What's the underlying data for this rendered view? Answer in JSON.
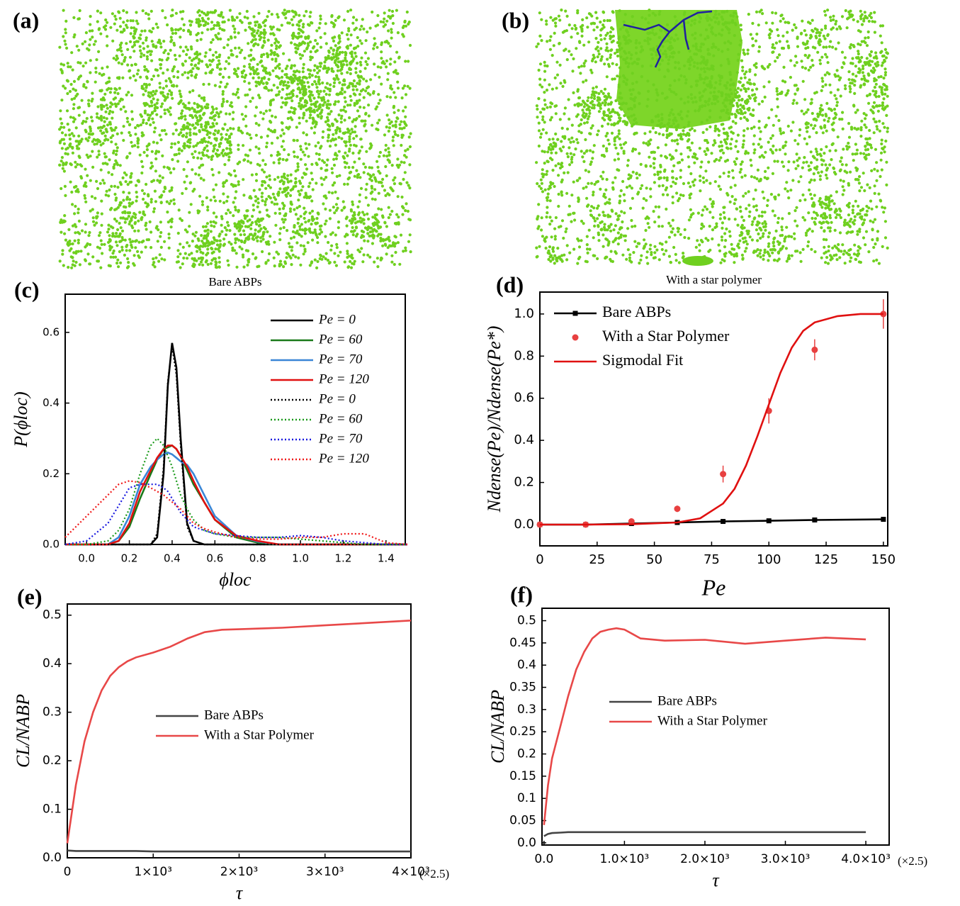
{
  "snapshots": [
    {
      "label": "(a)"
    },
    {
      "label": "(b)"
    }
  ],
  "chart_data": [
    {
      "type": "line",
      "label": "(c)",
      "title": "Bare ABPs",
      "xlabel": "ϕloc",
      "ylabel": "P(ϕloc)",
      "xlim": [
        -0.1,
        1.49
      ],
      "ylim": [
        0,
        0.708
      ],
      "xticks": [
        {
          "value": 0,
          "label": "0.0"
        },
        0.2,
        0.4,
        0.6,
        0.8,
        {
          "value": 1,
          "label": "1.0"
        },
        1.2,
        1.4
      ],
      "yticks": [
        {
          "value": 0,
          "label": "0.0"
        },
        0.2,
        0.4,
        0.6
      ],
      "x": [
        -0.1,
        0,
        0.1,
        0.15,
        0.2,
        0.25,
        0.3,
        0.33,
        0.36,
        0.38,
        0.4,
        0.42,
        0.44,
        0.47,
        0.5,
        0.55,
        0.6,
        0.7,
        0.8,
        0.9,
        1.0,
        1.1,
        1.2,
        1.3,
        1.4,
        1.5
      ],
      "legend": "upper right",
      "series": [
        {
          "name": "Pe = 0",
          "color": "#000000",
          "linestyle": "solid",
          "values": [
            0,
            0,
            0,
            0,
            0,
            0,
            0,
            0.02,
            0.2,
            0.45,
            0.57,
            0.5,
            0.3,
            0.06,
            0.01,
            0,
            0,
            0,
            0,
            0,
            0,
            0,
            0,
            0,
            0,
            0
          ]
        },
        {
          "name": "Pe = 60",
          "color": "#1a7a1a",
          "linestyle": "solid",
          "values": [
            0,
            0,
            0,
            0.01,
            0.05,
            0.13,
            0.2,
            0.24,
            0.27,
            0.275,
            0.28,
            0.27,
            0.25,
            0.21,
            0.17,
            0.12,
            0.07,
            0.02,
            0.005,
            0,
            0,
            0,
            0,
            0,
            0,
            0
          ]
        },
        {
          "name": "Pe = 70",
          "color": "#3a86d6",
          "linestyle": "solid",
          "values": [
            0,
            0,
            0,
            0.02,
            0.08,
            0.17,
            0.22,
            0.24,
            0.255,
            0.26,
            0.255,
            0.245,
            0.235,
            0.225,
            0.2,
            0.14,
            0.08,
            0.025,
            0.008,
            0,
            0,
            0,
            0,
            0,
            0,
            0
          ]
        },
        {
          "name": "Pe = 120",
          "color": "#e01010",
          "linestyle": "solid",
          "values": [
            0,
            0,
            0,
            0.01,
            0.06,
            0.15,
            0.21,
            0.245,
            0.27,
            0.28,
            0.28,
            0.27,
            0.25,
            0.22,
            0.18,
            0.12,
            0.07,
            0.025,
            0.01,
            0,
            0,
            0,
            0,
            0,
            0,
            0
          ]
        },
        {
          "name": "Pe = 0",
          "color": "#000000",
          "linestyle": "dotted",
          "values": [
            0,
            0,
            0,
            0,
            0,
            0,
            0,
            0.03,
            0.22,
            0.46,
            0.56,
            0.48,
            0.28,
            0.05,
            0.01,
            0,
            0,
            0,
            0,
            0,
            0,
            0,
            0,
            0,
            0,
            0
          ]
        },
        {
          "name": "Pe = 60",
          "color": "#1a9a1a",
          "linestyle": "dotted",
          "values": [
            0,
            0,
            0.01,
            0.04,
            0.1,
            0.2,
            0.28,
            0.3,
            0.28,
            0.25,
            0.22,
            0.18,
            0.14,
            0.1,
            0.07,
            0.04,
            0.03,
            0.02,
            0.02,
            0.02,
            0.015,
            0.01,
            0.005,
            0,
            0,
            0
          ]
        },
        {
          "name": "Pe = 70",
          "color": "#1a1ae0",
          "linestyle": "dotted",
          "values": [
            0,
            0.01,
            0.06,
            0.11,
            0.16,
            0.17,
            0.17,
            0.17,
            0.16,
            0.15,
            0.13,
            0.11,
            0.09,
            0.07,
            0.05,
            0.04,
            0.03,
            0.025,
            0.02,
            0.02,
            0.025,
            0.02,
            0.01,
            0.005,
            0,
            0
          ]
        },
        {
          "name": "Pe = 120",
          "color": "#f01a1a",
          "linestyle": "dotted",
          "values": [
            0.02,
            0.08,
            0.14,
            0.17,
            0.18,
            0.175,
            0.16,
            0.15,
            0.14,
            0.13,
            0.12,
            0.11,
            0.1,
            0.08,
            0.06,
            0.045,
            0.035,
            0.02,
            0.015,
            0.015,
            0.02,
            0.02,
            0.03,
            0.03,
            0.005,
            0
          ]
        }
      ]
    },
    {
      "type": "line",
      "label": "(d)",
      "title": "With a star polymer",
      "xlabel": "Pe",
      "ylabel": "Ndense(Pe)/Ndense(Pe*)",
      "xlim": [
        0,
        151.9
      ],
      "ylim": [
        -0.101,
        1.104
      ],
      "xticks": [
        0,
        25,
        50,
        75,
        100,
        125,
        150
      ],
      "yticks": [
        {
          "value": 0,
          "label": "0.0"
        },
        0.2,
        0.4,
        0.6,
        0.8,
        {
          "value": 1,
          "label": "1.0"
        }
      ],
      "legend": "upper left",
      "series": [
        {
          "name": "Bare ABPs",
          "color": "#000000",
          "linestyle": "solid",
          "marker": "square",
          "x": [
            0,
            20,
            40,
            60,
            80,
            100,
            120,
            150
          ],
          "values": [
            0,
            0,
            0.005,
            0.01,
            0.015,
            0.018,
            0.022,
            0.025
          ]
        },
        {
          "name": "With a Star Polymer",
          "color": "#e84040",
          "linestyle": "none",
          "marker": "circle",
          "x": [
            0,
            20,
            40,
            60,
            80,
            100,
            120,
            150
          ],
          "values": [
            0,
            0,
            0.015,
            0.075,
            0.24,
            0.54,
            0.83,
            1.0
          ],
          "errors": [
            0,
            0,
            0.01,
            0.015,
            0.04,
            0.06,
            0.05,
            0.07
          ]
        },
        {
          "name": "Sigmodal Fit",
          "color": "#e01010",
          "linestyle": "solid",
          "x": [
            0,
            20,
            40,
            60,
            70,
            80,
            85,
            90,
            95,
            100,
            105,
            110,
            115,
            120,
            130,
            140,
            150
          ],
          "values": [
            0,
            0,
            0.002,
            0.01,
            0.03,
            0.1,
            0.17,
            0.28,
            0.42,
            0.57,
            0.72,
            0.84,
            0.92,
            0.96,
            0.99,
            1.0,
            1.0
          ]
        }
      ]
    },
    {
      "type": "line",
      "label": "(e)",
      "xlabel": "τ",
      "ylabel": "CL/NABP",
      "x_annotation": "(×2.5)",
      "xlim": [
        0,
        4000
      ],
      "ylim": [
        0,
        0.523
      ],
      "xticks": [
        0,
        {
          "value": 1000,
          "label": "1×10³"
        },
        {
          "value": 2000,
          "label": "2×10³"
        },
        {
          "value": 3000,
          "label": "3×10³"
        },
        {
          "value": 4000,
          "label": "4×10³"
        }
      ],
      "yticks": [
        {
          "value": 0,
          "label": "0.0"
        },
        0.1,
        0.2,
        0.3,
        0.4,
        0.5
      ],
      "legend": "center",
      "x": [
        0,
        100,
        200,
        300,
        400,
        500,
        600,
        700,
        800,
        1000,
        1200,
        1400,
        1600,
        1800,
        2000,
        2500,
        3000,
        3500,
        4000
      ],
      "series": [
        {
          "name": "Bare ABPs",
          "color": "#444444",
          "linestyle": "solid",
          "values": [
            0.015,
            0.014,
            0.014,
            0.014,
            0.014,
            0.014,
            0.014,
            0.014,
            0.014,
            0.013,
            0.013,
            0.013,
            0.013,
            0.013,
            0.013,
            0.013,
            0.013,
            0.013,
            0.013
          ]
        },
        {
          "name": "With a Star Polymer",
          "color": "#e84848",
          "linestyle": "solid",
          "values": [
            0.03,
            0.15,
            0.24,
            0.3,
            0.345,
            0.375,
            0.393,
            0.405,
            0.413,
            0.423,
            0.435,
            0.452,
            0.465,
            0.47,
            0.471,
            0.474,
            0.479,
            0.484,
            0.489
          ]
        }
      ]
    },
    {
      "type": "line",
      "label": "(f)",
      "xlabel": "τ",
      "ylabel": "CL/NABP",
      "x_annotation": "(×2.5)",
      "xlim": [
        -25,
        4290
      ],
      "ylim": [
        -0.005,
        0.528
      ],
      "xticks": [
        {
          "value": 0,
          "label": "0.0"
        },
        {
          "value": 1000,
          "label": "1.0×10³"
        },
        {
          "value": 2000,
          "label": "2.0×10³"
        },
        {
          "value": 3000,
          "label": "3.0×10³"
        },
        {
          "value": 4000,
          "label": "4.0×10³"
        }
      ],
      "yticks": [
        {
          "value": 0,
          "label": "0.0"
        },
        0.05,
        0.1,
        0.15,
        0.2,
        0.25,
        0.3,
        0.35,
        0.4,
        0.45,
        0.5
      ],
      "legend": "center left",
      "x": [
        0,
        50,
        100,
        200,
        300,
        400,
        500,
        600,
        700,
        800,
        900,
        1000,
        1100,
        1200,
        1500,
        2000,
        2500,
        3000,
        3500,
        4000
      ],
      "series": [
        {
          "name": "Bare ABPs",
          "color": "#444444",
          "linestyle": "solid",
          "values": [
            0.015,
            0.02,
            0.022,
            0.023,
            0.024,
            0.024,
            0.024,
            0.024,
            0.024,
            0.024,
            0.024,
            0.024,
            0.024,
            0.024,
            0.024,
            0.024,
            0.024,
            0.024,
            0.024,
            0.024
          ]
        },
        {
          "name": "With a Star Polymer",
          "color": "#e84848",
          "linestyle": "solid",
          "values": [
            0.04,
            0.13,
            0.19,
            0.26,
            0.33,
            0.39,
            0.43,
            0.46,
            0.475,
            0.48,
            0.483,
            0.48,
            0.47,
            0.46,
            0.455,
            0.457,
            0.448,
            0.455,
            0.462,
            0.458
          ]
        }
      ]
    }
  ]
}
